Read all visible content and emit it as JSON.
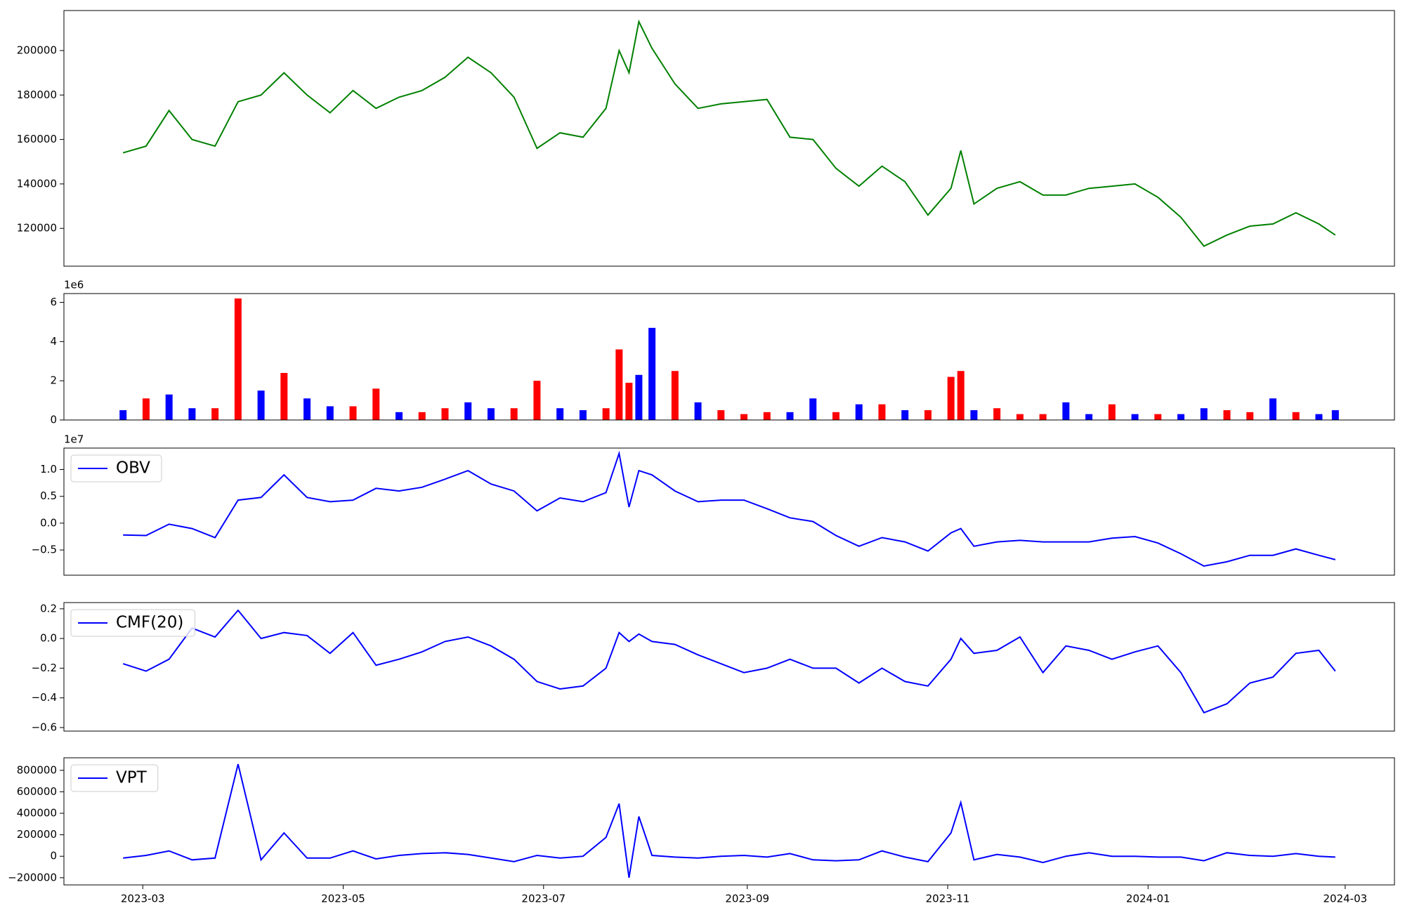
{
  "chart_data": [
    {
      "type": "line",
      "color": "green",
      "xlim": [
        -24,
        381
      ],
      "ylim": [
        103000,
        218000
      ],
      "yticks": [
        120000,
        140000,
        160000,
        180000,
        200000
      ],
      "x": [
        -6,
        1,
        8,
        15,
        22,
        29,
        36,
        43,
        50,
        57,
        64,
        71,
        78,
        85,
        92,
        99,
        106,
        113,
        120,
        127,
        134,
        141,
        145,
        148,
        151,
        155,
        162,
        169,
        176,
        183,
        190,
        197,
        204,
        211,
        218,
        225,
        232,
        239,
        246,
        249,
        253,
        260,
        267,
        274,
        281,
        288,
        295,
        302,
        309,
        316,
        323,
        330,
        337,
        344,
        351,
        358,
        363
      ],
      "values": [
        154000,
        157000,
        173000,
        160000,
        157000,
        177000,
        180000,
        190000,
        180000,
        172000,
        182000,
        174000,
        179000,
        182000,
        188000,
        197000,
        190000,
        179000,
        156000,
        163000,
        161000,
        174000,
        200000,
        190000,
        213000,
        201000,
        185000,
        174000,
        176000,
        177000,
        178000,
        161000,
        160000,
        147000,
        139000,
        148000,
        141000,
        126000,
        138000,
        155000,
        131000,
        138000,
        141000,
        135000,
        135000,
        138000,
        139000,
        140000,
        134000,
        125000,
        112000,
        117000,
        121000,
        122000,
        127000,
        122000,
        117000
      ]
    },
    {
      "type": "bar",
      "offset_label": "1e6",
      "xlim": [
        -24,
        381
      ],
      "ylim": [
        0,
        6.45
      ],
      "yticks": [
        0,
        2,
        4,
        6
      ],
      "x": [
        -6,
        1,
        8,
        15,
        22,
        29,
        36,
        43,
        50,
        57,
        64,
        71,
        78,
        85,
        92,
        99,
        106,
        113,
        120,
        127,
        134,
        141,
        145,
        148,
        151,
        155,
        162,
        169,
        176,
        183,
        190,
        197,
        204,
        211,
        218,
        225,
        232,
        239,
        246,
        249,
        253,
        260,
        267,
        274,
        281,
        288,
        295,
        302,
        309,
        316,
        323,
        330,
        337,
        344,
        351,
        358,
        363
      ],
      "values": [
        0.5,
        1.1,
        1.3,
        0.6,
        0.6,
        6.2,
        1.5,
        2.4,
        1.1,
        0.7,
        0.7,
        1.6,
        0.4,
        0.4,
        0.6,
        0.9,
        0.6,
        0.6,
        2.0,
        0.6,
        0.5,
        0.6,
        3.6,
        1.9,
        2.3,
        4.7,
        2.5,
        0.9,
        0.5,
        0.3,
        0.4,
        0.4,
        1.1,
        0.4,
        0.8,
        0.8,
        0.5,
        0.5,
        2.2,
        2.5,
        0.5,
        0.6,
        0.3,
        0.3,
        0.9,
        0.3,
        0.8,
        0.3,
        0.3,
        0.3,
        0.6,
        0.5,
        0.4,
        1.1,
        0.4,
        0.3,
        0.5
      ],
      "colors": [
        "blue",
        "red",
        "blue",
        "blue",
        "red",
        "red",
        "blue",
        "red",
        "blue",
        "blue",
        "red",
        "red",
        "blue",
        "red",
        "red",
        "blue",
        "blue",
        "red",
        "red",
        "blue",
        "blue",
        "red",
        "red",
        "red",
        "blue",
        "blue",
        "red",
        "blue",
        "red",
        "red",
        "red",
        "blue",
        "blue",
        "red",
        "blue",
        "red",
        "blue",
        "red",
        "red",
        "red",
        "blue",
        "red",
        "red",
        "red",
        "blue",
        "blue",
        "red",
        "blue",
        "red",
        "blue",
        "blue",
        "red",
        "red",
        "blue",
        "red",
        "blue",
        "blue"
      ]
    },
    {
      "type": "line",
      "offset_label": "1e7",
      "legend": "upper left",
      "xlim": [
        -24,
        381
      ],
      "ylim": [
        -0.97,
        1.4
      ],
      "yticks": [
        {
          "value": -0.5,
          "label": "−0.5"
        },
        {
          "value": 0,
          "label": "0.0"
        },
        0.5,
        {
          "value": 1,
          "label": "1.0"
        }
      ],
      "x": [
        -6,
        1,
        8,
        15,
        22,
        29,
        36,
        43,
        50,
        57,
        64,
        71,
        78,
        85,
        92,
        99,
        106,
        113,
        120,
        127,
        134,
        141,
        145,
        148,
        151,
        155,
        162,
        169,
        176,
        183,
        190,
        197,
        204,
        211,
        218,
        225,
        232,
        239,
        246,
        249,
        253,
        260,
        267,
        274,
        281,
        288,
        295,
        302,
        309,
        316,
        323,
        330,
        337,
        344,
        351,
        358,
        363
      ],
      "series": [
        {
          "name": "OBV",
          "color": "blue",
          "values": [
            -0.22,
            -0.23,
            -0.02,
            -0.1,
            -0.27,
            0.43,
            0.48,
            0.9,
            0.48,
            0.4,
            0.43,
            0.65,
            0.6,
            0.67,
            0.82,
            0.98,
            0.73,
            0.6,
            0.23,
            0.47,
            0.4,
            0.57,
            1.3,
            0.3,
            0.98,
            0.9,
            0.6,
            0.4,
            0.43,
            0.43,
            0.27,
            0.1,
            0.03,
            -0.23,
            -0.43,
            -0.27,
            -0.35,
            -0.52,
            -0.18,
            -0.1,
            -0.43,
            -0.35,
            -0.32,
            -0.35,
            -0.35,
            -0.35,
            -0.28,
            -0.25,
            -0.37,
            -0.57,
            -0.8,
            -0.72,
            -0.6,
            -0.6,
            -0.48,
            -0.6,
            -0.68
          ]
        }
      ]
    },
    {
      "type": "line",
      "legend": "upper left",
      "xlim": [
        -24,
        381
      ],
      "ylim": [
        -0.624,
        0.242
      ],
      "yticks": [
        {
          "value": -0.6,
          "label": "−0.6"
        },
        {
          "value": -0.4,
          "label": "−0.4"
        },
        {
          "value": -0.2,
          "label": "−0.2"
        },
        {
          "value": 0,
          "label": "0.0"
        },
        0.2
      ],
      "x": [
        -6,
        1,
        8,
        15,
        22,
        29,
        36,
        43,
        50,
        57,
        64,
        71,
        78,
        85,
        92,
        99,
        106,
        113,
        120,
        127,
        134,
        141,
        145,
        148,
        151,
        155,
        162,
        169,
        176,
        183,
        190,
        197,
        204,
        211,
        218,
        225,
        232,
        239,
        246,
        249,
        253,
        260,
        267,
        274,
        281,
        288,
        295,
        302,
        309,
        316,
        323,
        330,
        337,
        344,
        351,
        358,
        363
      ],
      "series": [
        {
          "name": "CMF(20)",
          "color": "blue",
          "values": [
            -0.17,
            -0.22,
            -0.14,
            0.07,
            0.01,
            0.19,
            0,
            0.04,
            0.02,
            -0.1,
            0.04,
            -0.18,
            -0.14,
            -0.09,
            -0.02,
            0.01,
            -0.05,
            -0.14,
            -0.29,
            -0.34,
            -0.32,
            -0.2,
            0.04,
            -0.02,
            0.03,
            -0.02,
            -0.04,
            -0.11,
            -0.17,
            -0.23,
            -0.2,
            -0.14,
            -0.2,
            -0.2,
            -0.3,
            -0.2,
            -0.29,
            -0.32,
            -0.14,
            0,
            -0.1,
            -0.08,
            0.01,
            -0.23,
            -0.05,
            -0.08,
            -0.14,
            -0.09,
            -0.05,
            -0.23,
            -0.5,
            -0.44,
            -0.3,
            -0.26,
            -0.1,
            -0.08,
            -0.22
          ]
        }
      ]
    },
    {
      "type": "line",
      "legend": "upper left",
      "xlim": [
        -24,
        381
      ],
      "ylim": [
        -266700,
        916700
      ],
      "yticks": [
        {
          "value": -200000,
          "label": "−200000"
        },
        0,
        200000,
        400000,
        600000,
        800000
      ],
      "xticks": [
        {
          "value": 0,
          "label": "2023-03"
        },
        {
          "value": 61,
          "label": "2023-05"
        },
        {
          "value": 122,
          "label": "2023-07"
        },
        {
          "value": 184,
          "label": "2023-09"
        },
        {
          "value": 245,
          "label": "2023-11"
        },
        {
          "value": 306,
          "label": "2024-01"
        },
        {
          "value": 366,
          "label": "2024-03"
        }
      ],
      "x": [
        -6,
        1,
        8,
        15,
        22,
        29,
        36,
        43,
        50,
        57,
        64,
        71,
        78,
        85,
        92,
        99,
        106,
        113,
        120,
        127,
        134,
        141,
        145,
        148,
        151,
        155,
        162,
        169,
        176,
        183,
        190,
        197,
        204,
        211,
        218,
        225,
        232,
        239,
        246,
        249,
        253,
        260,
        267,
        274,
        281,
        288,
        295,
        302,
        309,
        316,
        323,
        330,
        337,
        344,
        351,
        358,
        363
      ],
      "series": [
        {
          "name": "VPT",
          "color": "blue",
          "values": [
            -17000,
            8000,
            50000,
            -33000,
            -17000,
            858000,
            -33000,
            217000,
            -17000,
            -17000,
            50000,
            -25000,
            8000,
            25000,
            33000,
            17000,
            -17000,
            -50000,
            8000,
            -17000,
            0,
            175000,
            490000,
            -200000,
            370000,
            8000,
            -8000,
            -17000,
            0,
            8000,
            -8000,
            25000,
            -33000,
            -42000,
            -33000,
            50000,
            -8000,
            -50000,
            217000,
            500000,
            -33000,
            17000,
            -8000,
            -58000,
            0,
            33000,
            0,
            0,
            -8000,
            -8000,
            -42000,
            33000,
            8000,
            0,
            25000,
            0,
            -8000
          ]
        }
      ]
    }
  ]
}
